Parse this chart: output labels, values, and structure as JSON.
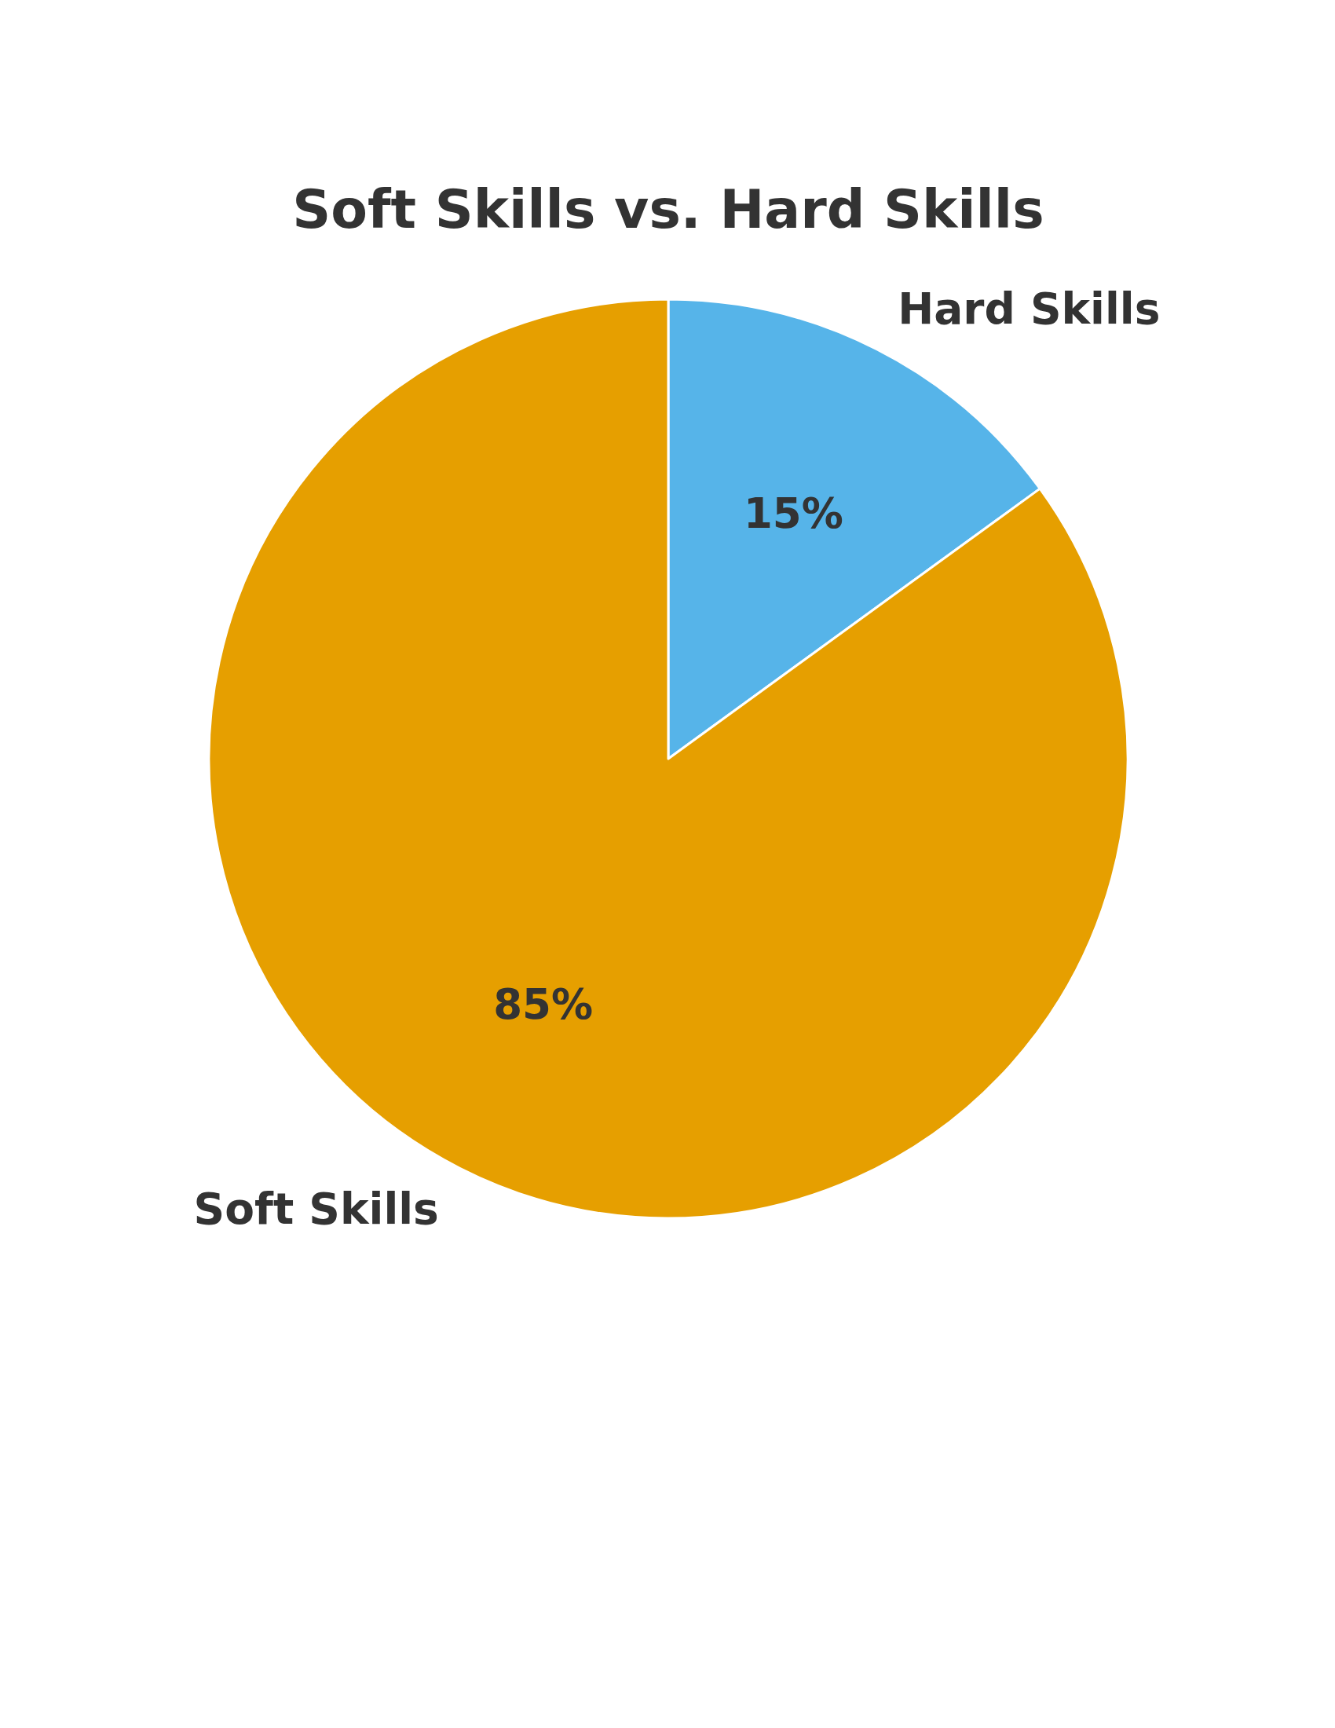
{
  "chart_data": {
    "type": "pie",
    "title": "Soft Skills vs. Hard Skills",
    "categories": [
      "Hard Skills",
      "Soft Skills"
    ],
    "values": [
      15,
      85
    ],
    "colors": [
      "#56b4e9",
      "#e69f00"
    ],
    "value_labels": [
      "15%",
      "85%"
    ]
  }
}
